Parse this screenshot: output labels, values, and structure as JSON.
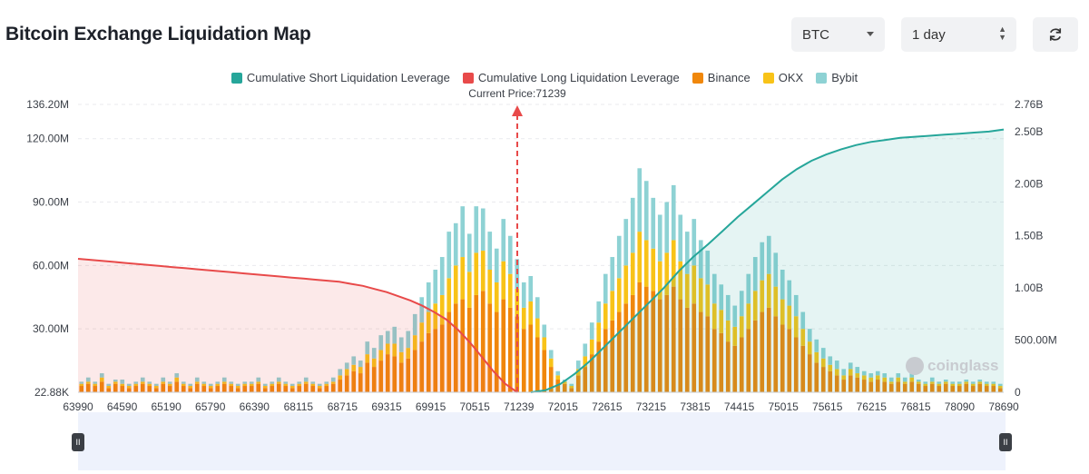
{
  "header": {
    "title": "Bitcoin Exchange Liquidation Map",
    "symbol_select": "BTC",
    "range_select": "1 day"
  },
  "legend": [
    {
      "label": "Cumulative Short Liquidation Leverage",
      "color": "#26a69a"
    },
    {
      "label": "Cumulative Long Liquidation Leverage",
      "color": "#e84a4a"
    },
    {
      "label": "Binance",
      "color": "#f0870b"
    },
    {
      "label": "OKX",
      "color": "#f8c318"
    },
    {
      "label": "Bybit",
      "color": "#8ed2d4"
    }
  ],
  "current_price_label": "Current Price:71239",
  "watermark": "coinglass",
  "chart_data": {
    "type": "bar",
    "current_price": 71239,
    "x_tick_labels": [
      "63990",
      "64590",
      "65190",
      "65790",
      "66390",
      "68115",
      "68715",
      "69315",
      "69915",
      "70515",
      "71239",
      "72015",
      "72615",
      "73215",
      "73815",
      "74415",
      "75015",
      "75615",
      "76215",
      "76815",
      "78090",
      "78690"
    ],
    "y_left_ticks": [
      "22.88K",
      "30.00M",
      "60.00M",
      "90.00M",
      "120.00M",
      "136.20M"
    ],
    "y_left_values": [
      0.02288,
      30,
      60,
      90,
      120,
      136.2
    ],
    "y_left_unit": "M",
    "y_right_ticks": [
      "0",
      "500.00M",
      "1.00B",
      "1.50B",
      "2.00B",
      "2.50B",
      "2.76B"
    ],
    "y_right_values": [
      0,
      0.5,
      1.0,
      1.5,
      2.0,
      2.5,
      2.76
    ],
    "y_right_unit": "B",
    "bar_series": [
      {
        "name": "Binance",
        "values": [
          3,
          4,
          3,
          5,
          2,
          4,
          3,
          2,
          3,
          4,
          3,
          2,
          4,
          3,
          5,
          3,
          2,
          4,
          3,
          2,
          3,
          4,
          3,
          2,
          3,
          3,
          4,
          2,
          3,
          4,
          3,
          2,
          3,
          4,
          3,
          2,
          3,
          4,
          6,
          8,
          10,
          9,
          14,
          12,
          15,
          18,
          17,
          14,
          16,
          20,
          24,
          28,
          30,
          32,
          38,
          42,
          44,
          40,
          46,
          48,
          42,
          38,
          44,
          40,
          36,
          30,
          32,
          26,
          20,
          12,
          6,
          4,
          2,
          8,
          12,
          18,
          24,
          30,
          34,
          38,
          42,
          46,
          52,
          50,
          48,
          44,
          46,
          50,
          44,
          40,
          42,
          38,
          36,
          30,
          28,
          24,
          22,
          26,
          30,
          34,
          38,
          40,
          36,
          32,
          30,
          26,
          22,
          18,
          14,
          12,
          10,
          8,
          6,
          8,
          7,
          6,
          5,
          6,
          5,
          4,
          5,
          4,
          5,
          4,
          3,
          4,
          3,
          4,
          3,
          3,
          4,
          3,
          4,
          3,
          3,
          2
        ]
      },
      {
        "name": "OKX",
        "values": [
          1,
          1,
          1,
          2,
          1,
          1,
          1,
          1,
          1,
          1,
          1,
          1,
          1,
          1,
          2,
          1,
          1,
          1,
          1,
          1,
          1,
          1,
          1,
          1,
          1,
          1,
          1,
          1,
          1,
          1,
          1,
          1,
          1,
          1,
          1,
          1,
          1,
          1,
          2,
          3,
          3,
          3,
          4,
          4,
          5,
          5,
          6,
          5,
          5,
          7,
          9,
          10,
          12,
          14,
          16,
          18,
          20,
          17,
          20,
          19,
          16,
          14,
          18,
          16,
          13,
          10,
          11,
          9,
          6,
          4,
          2,
          1,
          1,
          3,
          5,
          7,
          9,
          12,
          14,
          16,
          18,
          20,
          24,
          22,
          20,
          18,
          20,
          22,
          18,
          16,
          18,
          16,
          15,
          12,
          11,
          10,
          9,
          10,
          12,
          14,
          15,
          16,
          14,
          12,
          11,
          10,
          8,
          6,
          5,
          4,
          3,
          3,
          2,
          3,
          2,
          2,
          2,
          2,
          2,
          1,
          2,
          1,
          2,
          1,
          1,
          1,
          1,
          1,
          1,
          1,
          1,
          1,
          1,
          1,
          1,
          1
        ]
      },
      {
        "name": "Bybit",
        "values": [
          1,
          2,
          1,
          2,
          1,
          1,
          2,
          1,
          1,
          2,
          1,
          1,
          2,
          1,
          2,
          1,
          1,
          2,
          1,
          1,
          1,
          2,
          1,
          1,
          1,
          1,
          2,
          1,
          1,
          2,
          1,
          1,
          1,
          2,
          1,
          1,
          1,
          2,
          3,
          3,
          4,
          3,
          6,
          5,
          7,
          6,
          8,
          7,
          8,
          10,
          12,
          14,
          16,
          18,
          22,
          20,
          24,
          18,
          22,
          20,
          18,
          16,
          20,
          18,
          14,
          12,
          12,
          10,
          6,
          4,
          2,
          1,
          1,
          4,
          6,
          8,
          10,
          14,
          16,
          20,
          22,
          26,
          30,
          28,
          24,
          22,
          24,
          26,
          22,
          20,
          22,
          18,
          16,
          14,
          12,
          12,
          10,
          12,
          14,
          16,
          18,
          18,
          16,
          14,
          12,
          10,
          8,
          6,
          6,
          5,
          4,
          4,
          3,
          3,
          3,
          2,
          2,
          2,
          2,
          2,
          2,
          2,
          2,
          1,
          1,
          2,
          1,
          1,
          1,
          1,
          1,
          1,
          1,
          1,
          1,
          1
        ]
      }
    ],
    "long_cumulative_B": [
      1.28,
      1.27,
      1.26,
      1.25,
      1.24,
      1.23,
      1.22,
      1.21,
      1.2,
      1.19,
      1.18,
      1.17,
      1.16,
      1.15,
      1.14,
      1.13,
      1.12,
      1.11,
      1.1,
      1.09,
      1.08,
      1.07,
      1.06,
      1.04,
      1.02,
      0.99,
      0.96,
      0.92,
      0.88,
      0.83,
      0.77,
      0.7,
      0.6,
      0.48,
      0.34,
      0.2,
      0.08,
      0.0
    ],
    "short_cumulative_B": [
      0.0,
      0.02,
      0.08,
      0.18,
      0.3,
      0.44,
      0.58,
      0.72,
      0.86,
      1.0,
      1.16,
      1.3,
      1.42,
      1.55,
      1.68,
      1.8,
      1.92,
      2.04,
      2.14,
      2.22,
      2.28,
      2.33,
      2.37,
      2.4,
      2.42,
      2.44,
      2.45,
      2.46,
      2.47,
      2.48,
      2.49,
      2.5,
      2.52
    ],
    "title": "Bitcoin Exchange Liquidation Map"
  }
}
